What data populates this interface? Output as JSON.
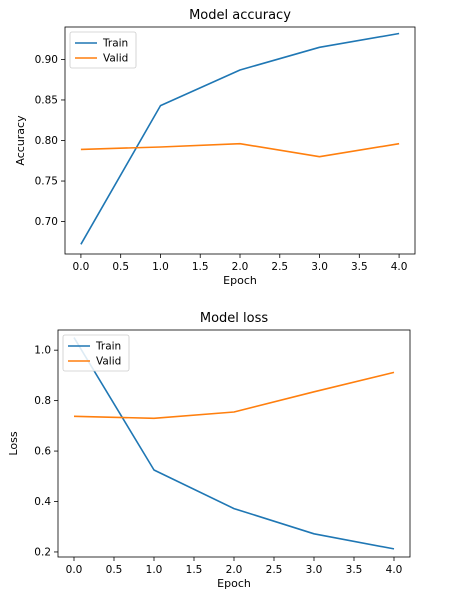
{
  "chart_data": [
    {
      "type": "line",
      "title": "Model accuracy",
      "xlabel": "Epoch",
      "ylabel": "Accuracy",
      "xlim": [
        -0.2,
        4.2
      ],
      "ylim": [
        0.66,
        0.94
      ],
      "xticks": [
        "0.0",
        "0.5",
        "1.0",
        "1.5",
        "2.0",
        "2.5",
        "3.0",
        "3.5",
        "4.0"
      ],
      "yticks": [
        "0.70",
        "0.75",
        "0.80",
        "0.85",
        "0.90"
      ],
      "x": [
        0,
        1,
        2,
        3,
        4
      ],
      "series": [
        {
          "name": "Train",
          "color": "#1f77b4",
          "values": [
            0.672,
            0.843,
            0.887,
            0.915,
            0.932
          ]
        },
        {
          "name": "Valid",
          "color": "#ff7f0e",
          "values": [
            0.789,
            0.792,
            0.796,
            0.78,
            0.796
          ]
        }
      ],
      "legend": "upper left",
      "grid": false
    },
    {
      "type": "line",
      "title": "Model loss",
      "xlabel": "Epoch",
      "ylabel": "Loss",
      "xlim": [
        -0.2,
        4.2
      ],
      "ylim": [
        0.18,
        1.08
      ],
      "xticks": [
        "0.0",
        "0.5",
        "1.0",
        "1.5",
        "2.0",
        "2.5",
        "3.0",
        "3.5",
        "4.0"
      ],
      "yticks": [
        "0.2",
        "0.4",
        "0.6",
        "0.8",
        "1.0"
      ],
      "x": [
        0,
        1,
        2,
        3,
        4
      ],
      "series": [
        {
          "name": "Train",
          "color": "#1f77b4",
          "values": [
            1.05,
            0.525,
            0.372,
            0.272,
            0.212
          ]
        },
        {
          "name": "Valid",
          "color": "#ff7f0e",
          "values": [
            0.738,
            0.73,
            0.755,
            0.835,
            0.912
          ]
        }
      ],
      "legend": "upper left",
      "grid": false
    }
  ]
}
